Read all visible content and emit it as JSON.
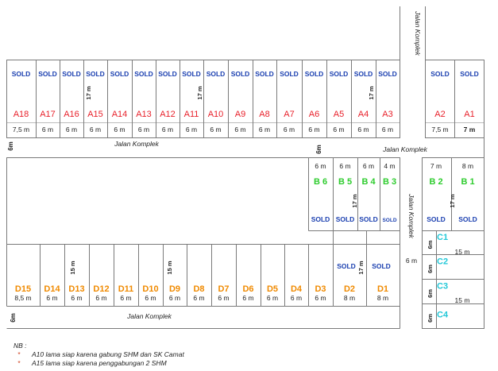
{
  "roads": {
    "top_vertical": "Jalan Komplek",
    "middle_left": "Jalan Komplek",
    "middle_right": "Jalan Komplek",
    "right_vertical": "Jalan Komplek",
    "bottom": "Jalan Komplek"
  },
  "road_widths": {
    "middle_left": "6m",
    "middle_right": "6m",
    "bottom_left": "6m",
    "right_vertical": "6 m"
  },
  "a_row": {
    "lots": [
      {
        "id": "A18",
        "status": "SOLD",
        "width": "7,5 m"
      },
      {
        "id": "A17",
        "status": "SOLD",
        "width": "6 m"
      },
      {
        "id": "A16",
        "status": "SOLD",
        "width": "6 m"
      },
      {
        "id": "A15",
        "status": "SOLD",
        "width": "6 m"
      },
      {
        "id": "A14",
        "status": "SOLD",
        "width": "6 m"
      },
      {
        "id": "A13",
        "status": "SOLD",
        "width": "6 m"
      },
      {
        "id": "A12",
        "status": "SOLD",
        "width": "6 m"
      },
      {
        "id": "A11",
        "status": "SOLD",
        "width": "6 m"
      },
      {
        "id": "A10",
        "status": "SOLD",
        "width": "6 m"
      },
      {
        "id": "A9",
        "status": "SOLD",
        "width": "6 m"
      },
      {
        "id": "A8",
        "status": "SOLD",
        "width": "6 m"
      },
      {
        "id": "A7",
        "status": "SOLD",
        "width": "6 m"
      },
      {
        "id": "A6",
        "status": "SOLD",
        "width": "6 m"
      },
      {
        "id": "A5",
        "status": "SOLD",
        "width": "6 m"
      },
      {
        "id": "A4",
        "status": "SOLD",
        "width": "6 m"
      },
      {
        "id": "A3",
        "status": "SOLD",
        "width": "6 m"
      },
      {
        "id": "A2",
        "status": "SOLD",
        "width": "7,5 m"
      },
      {
        "id": "A1",
        "status": "SOLD",
        "width": "7 m"
      }
    ],
    "depths": [
      "17 m",
      "17 m",
      "17 m"
    ]
  },
  "b_row": {
    "lots": [
      {
        "id": "B 6",
        "status": "SOLD",
        "width": "6 m"
      },
      {
        "id": "B 5",
        "status": "SOLD",
        "width": "6 m"
      },
      {
        "id": "B 4",
        "status": "SOLD",
        "width": "6 m"
      },
      {
        "id": "B 3",
        "status": "SOLD",
        "width": "4 m"
      },
      {
        "id": "B 2",
        "status": "SOLD",
        "width": "7 m"
      },
      {
        "id": "B 1",
        "status": "SOLD",
        "width": "8 m"
      }
    ],
    "depths": [
      "17 m",
      "17 m"
    ]
  },
  "c_block": {
    "lots": [
      {
        "id": "C1",
        "width": "6m"
      },
      {
        "id": "C2",
        "width": "6m"
      },
      {
        "id": "C3",
        "width": "6m"
      },
      {
        "id": "C4",
        "width": "6m"
      }
    ],
    "depths": [
      "15 m",
      "15 m"
    ]
  },
  "d_row": {
    "lots": [
      {
        "id": "D15",
        "status": "",
        "width": "8,5 m"
      },
      {
        "id": "D14",
        "status": "",
        "width": "6 m"
      },
      {
        "id": "D13",
        "status": "",
        "width": "6 m"
      },
      {
        "id": "D12",
        "status": "",
        "width": "6 m"
      },
      {
        "id": "D11",
        "status": "",
        "width": "6 m"
      },
      {
        "id": "D10",
        "status": "",
        "width": "6 m"
      },
      {
        "id": "D9",
        "status": "",
        "width": "6 m"
      },
      {
        "id": "D8",
        "status": "",
        "width": "6 m"
      },
      {
        "id": "D7",
        "status": "",
        "width": "6 m"
      },
      {
        "id": "D6",
        "status": "",
        "width": "6 m"
      },
      {
        "id": "D5",
        "status": "",
        "width": "6 m"
      },
      {
        "id": "D4",
        "status": "",
        "width": "6 m"
      },
      {
        "id": "D3",
        "status": "",
        "width": "6 m"
      },
      {
        "id": "D2",
        "status": "SOLD",
        "width": "8 m"
      },
      {
        "id": "D1",
        "status": "SOLD",
        "width": "8 m"
      }
    ],
    "depths": [
      "15 m",
      "15 m",
      "17 m"
    ]
  },
  "notes": {
    "title": "NB :",
    "bullet": "*",
    "items": [
      "A10 lama siap karena gabung SHM dan SK Camat",
      "A15 lama siap karena penggabungan 2 SHM"
    ]
  },
  "colors": {
    "a_label": "#e8202a",
    "b_label": "#2ecc2e",
    "c_label": "#22c8d8",
    "d_label": "#f08a00",
    "sold": "#1a3fb0",
    "line": "#7a7a7a"
  }
}
